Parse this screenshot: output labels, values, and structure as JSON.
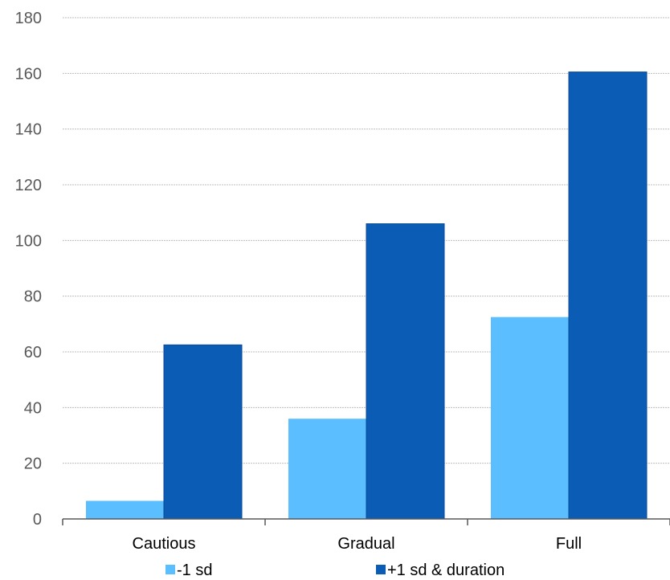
{
  "chart_data": {
    "type": "bar",
    "categories": [
      "Cautious",
      "Gradual",
      "Full"
    ],
    "series": [
      {
        "name": "-1 sd",
        "values": [
          6.5,
          36,
          72.5
        ],
        "color": "#5bbfff"
      },
      {
        "name": "+1 sd & duration",
        "values": [
          62.5,
          106,
          160.5
        ],
        "color": "#0a5cb5"
      }
    ],
    "yticks": [
      "0",
      "20",
      "40",
      "60",
      "80",
      "100",
      "120",
      "140",
      "160",
      "180"
    ],
    "ylim": [
      0,
      180
    ],
    "title": "",
    "xlabel": "",
    "ylabel": "",
    "grid": true,
    "legend_position": "bottom"
  }
}
